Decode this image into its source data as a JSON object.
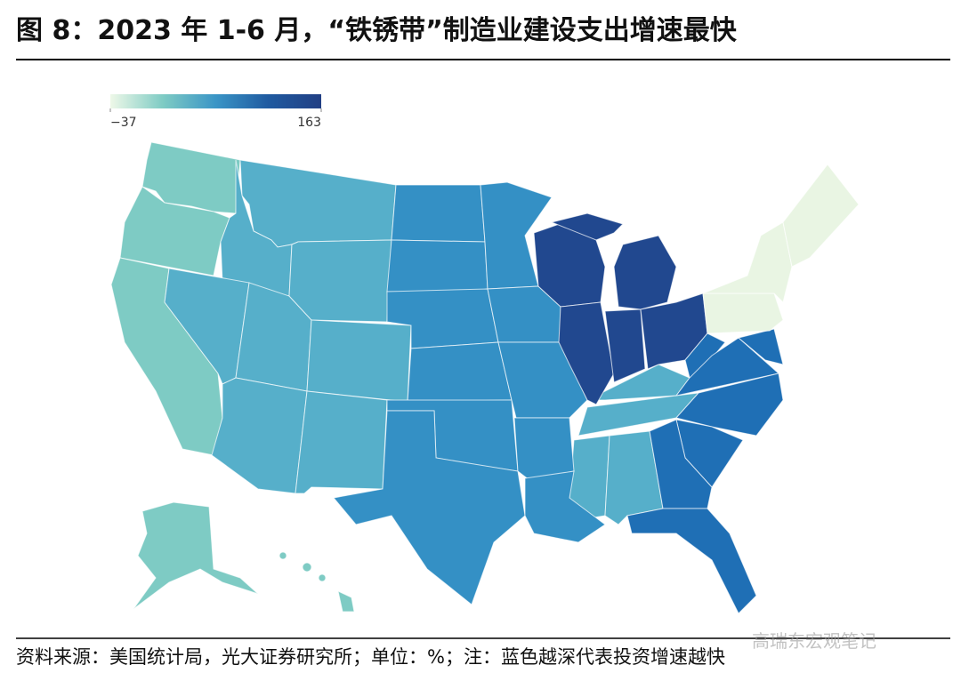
{
  "title": "图 8：2023 年 1-6 月，“铁锈带”制造业建设支出增速最快",
  "colorbar": {
    "ticks": [
      {
        "value": -37,
        "label": "−37"
      },
      163
    ],
    "colors": [
      "#eef8e8",
      "#7ecbc4",
      "#3a95c6",
      "#1f5aa0",
      "#213f84"
    ]
  },
  "footer": "资料来源：美国统计局，光大证券研究所；单位：%；注：蓝色越深代表投资增速越快",
  "watermark": "高瑞东宏观笔记"
}
